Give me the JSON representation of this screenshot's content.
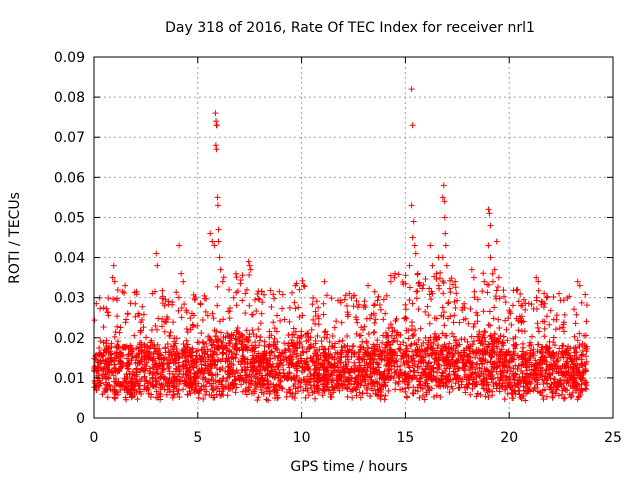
{
  "chart_data": {
    "type": "scatter",
    "title": "Day 318 of 2016, Rate Of TEC Index for receiver nrl1",
    "xlabel": "GPS time / hours",
    "ylabel": "ROTI / TECUs",
    "xlim": [
      0,
      25
    ],
    "ylim": [
      0,
      0.09
    ],
    "x_ticks": [
      0,
      5,
      10,
      15,
      20,
      25
    ],
    "y_ticks": [
      0,
      0.01,
      0.02,
      0.03,
      0.04,
      0.05,
      0.06,
      0.07,
      0.08,
      0.09
    ],
    "x_tick_labels": [
      "0",
      "5",
      "10",
      "15",
      "20",
      "25"
    ],
    "y_tick_labels": [
      "0",
      "0.01",
      "0.02",
      "0.03",
      "0.04",
      "0.05",
      "0.06",
      "0.07",
      "0.08",
      "0.09"
    ],
    "grid": true,
    "marker": "+",
    "series_color": "#ff0000",
    "data_x_range": [
      0,
      23.75
    ],
    "baseline_band": [
      0.004,
      0.02
    ],
    "outliers": [
      {
        "x": 0.95,
        "y": 0.038
      },
      {
        "x": 0.9,
        "y": 0.035
      },
      {
        "x": 1.0,
        "y": 0.034
      },
      {
        "x": 1.5,
        "y": 0.033
      },
      {
        "x": 3.0,
        "y": 0.041
      },
      {
        "x": 3.05,
        "y": 0.038
      },
      {
        "x": 4.1,
        "y": 0.043
      },
      {
        "x": 4.2,
        "y": 0.036
      },
      {
        "x": 4.3,
        "y": 0.034
      },
      {
        "x": 5.6,
        "y": 0.046
      },
      {
        "x": 5.7,
        "y": 0.044
      },
      {
        "x": 5.8,
        "y": 0.043
      },
      {
        "x": 5.85,
        "y": 0.076
      },
      {
        "x": 5.88,
        "y": 0.074
      },
      {
        "x": 5.9,
        "y": 0.073
      },
      {
        "x": 5.92,
        "y": 0.073
      },
      {
        "x": 5.87,
        "y": 0.068
      },
      {
        "x": 5.9,
        "y": 0.067
      },
      {
        "x": 5.95,
        "y": 0.055
      },
      {
        "x": 5.97,
        "y": 0.053
      },
      {
        "x": 6.0,
        "y": 0.047
      },
      {
        "x": 6.0,
        "y": 0.044
      },
      {
        "x": 6.05,
        "y": 0.04
      },
      {
        "x": 6.1,
        "y": 0.037
      },
      {
        "x": 6.2,
        "y": 0.034
      },
      {
        "x": 7.45,
        "y": 0.039
      },
      {
        "x": 7.5,
        "y": 0.038
      },
      {
        "x": 7.55,
        "y": 0.037
      },
      {
        "x": 9.7,
        "y": 0.033
      },
      {
        "x": 9.9,
        "y": 0.032
      },
      {
        "x": 10.1,
        "y": 0.033
      },
      {
        "x": 11.1,
        "y": 0.034
      },
      {
        "x": 12.3,
        "y": 0.031
      },
      {
        "x": 13.2,
        "y": 0.033
      },
      {
        "x": 14.3,
        "y": 0.034
      },
      {
        "x": 14.5,
        "y": 0.036
      },
      {
        "x": 15.3,
        "y": 0.082
      },
      {
        "x": 15.35,
        "y": 0.073
      },
      {
        "x": 15.3,
        "y": 0.053
      },
      {
        "x": 15.4,
        "y": 0.049
      },
      {
        "x": 15.35,
        "y": 0.045
      },
      {
        "x": 15.45,
        "y": 0.043
      },
      {
        "x": 15.5,
        "y": 0.041
      },
      {
        "x": 15.2,
        "y": 0.038
      },
      {
        "x": 15.6,
        "y": 0.036
      },
      {
        "x": 16.2,
        "y": 0.043
      },
      {
        "x": 16.3,
        "y": 0.038
      },
      {
        "x": 16.5,
        "y": 0.036
      },
      {
        "x": 16.6,
        "y": 0.04
      },
      {
        "x": 16.8,
        "y": 0.055
      },
      {
        "x": 16.85,
        "y": 0.058
      },
      {
        "x": 16.88,
        "y": 0.054
      },
      {
        "x": 16.9,
        "y": 0.05
      },
      {
        "x": 16.92,
        "y": 0.046
      },
      {
        "x": 16.95,
        "y": 0.043
      },
      {
        "x": 16.8,
        "y": 0.04
      },
      {
        "x": 17.0,
        "y": 0.038
      },
      {
        "x": 17.4,
        "y": 0.034
      },
      {
        "x": 18.2,
        "y": 0.037
      },
      {
        "x": 18.3,
        "y": 0.035
      },
      {
        "x": 18.8,
        "y": 0.034
      },
      {
        "x": 19.0,
        "y": 0.052
      },
      {
        "x": 19.05,
        "y": 0.051
      },
      {
        "x": 19.1,
        "y": 0.048
      },
      {
        "x": 19.0,
        "y": 0.043
      },
      {
        "x": 19.1,
        "y": 0.04
      },
      {
        "x": 19.3,
        "y": 0.037
      },
      {
        "x": 19.4,
        "y": 0.044
      },
      {
        "x": 19.5,
        "y": 0.035
      },
      {
        "x": 20.4,
        "y": 0.032
      },
      {
        "x": 21.3,
        "y": 0.035
      },
      {
        "x": 21.4,
        "y": 0.034
      },
      {
        "x": 22.4,
        "y": 0.031
      },
      {
        "x": 23.3,
        "y": 0.034
      },
      {
        "x": 23.4,
        "y": 0.033
      }
    ]
  }
}
